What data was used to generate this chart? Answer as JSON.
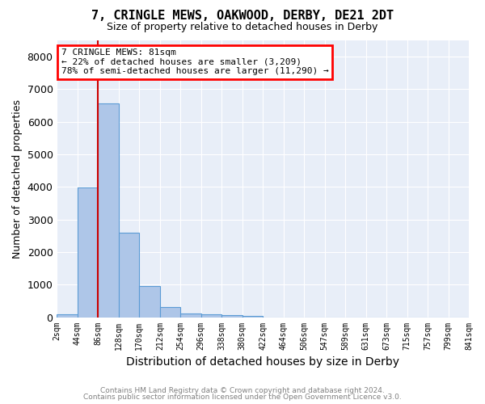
{
  "title": "7, CRINGLE MEWS, OAKWOOD, DERBY, DE21 2DT",
  "subtitle": "Size of property relative to detached houses in Derby",
  "xlabel": "Distribution of detached houses by size in Derby",
  "ylabel": "Number of detached properties",
  "bar_values": [
    80,
    3980,
    6560,
    2600,
    960,
    320,
    120,
    100,
    55,
    40,
    0,
    0,
    0,
    0,
    0,
    0,
    0,
    0,
    0,
    0
  ],
  "bar_labels": [
    "2sqm",
    "44sqm",
    "86sqm",
    "128sqm",
    "170sqm",
    "212sqm",
    "254sqm",
    "296sqm",
    "338sqm",
    "380sqm",
    "422sqm",
    "464sqm",
    "506sqm",
    "547sqm",
    "589sqm",
    "631sqm",
    "673sqm",
    "715sqm",
    "757sqm",
    "799sqm",
    "841sqm"
  ],
  "bar_color": "#aec6e8",
  "bar_edge_color": "#5b9bd5",
  "red_line_x": 1.5,
  "annotation_line1": "7 CRINGLE MEWS: 81sqm",
  "annotation_line2": "← 22% of detached houses are smaller (3,209)",
  "annotation_line3": "78% of semi-detached houses are larger (11,290) →",
  "annotation_box_color": "white",
  "annotation_box_edge_color": "red",
  "red_line_color": "#cc0000",
  "ylim": [
    0,
    8500
  ],
  "yticks": [
    0,
    1000,
    2000,
    3000,
    4000,
    5000,
    6000,
    7000,
    8000
  ],
  "footer_line1": "Contains HM Land Registry data © Crown copyright and database right 2024.",
  "footer_line2": "Contains public sector information licensed under the Open Government Licence v3.0.",
  "bg_color": "#e8eef8",
  "title_fontsize": 11,
  "subtitle_fontsize": 9
}
